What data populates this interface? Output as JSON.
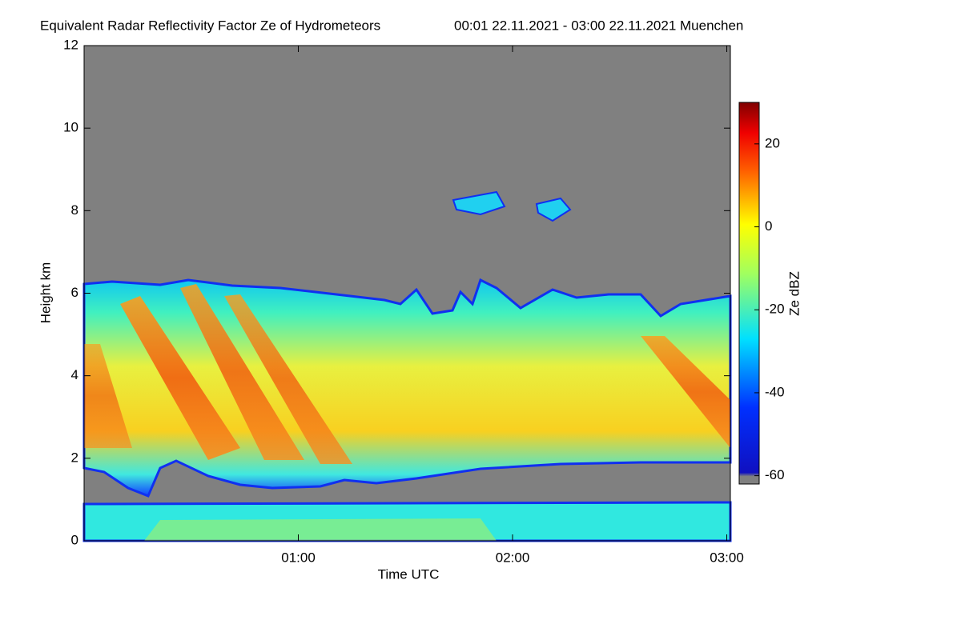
{
  "chart_data": {
    "type": "heatmap",
    "title": "Equivalent Radar Reflectivity Factor Ze of Hydrometeors",
    "subtitle": "00:01 22.11.2021 - 03:00 22.11.2021 Muenchen",
    "xlabel": "Time UTC",
    "ylabel": "Height km",
    "colorbar_label": "Ze dBZ",
    "xlim": [
      0,
      181
    ],
    "xticks": [
      {
        "value": 60,
        "label": "01:00"
      },
      {
        "value": 120,
        "label": "02:00"
      },
      {
        "value": 180,
        "label": "03:00"
      }
    ],
    "ylim": [
      0,
      12
    ],
    "yticks": [
      0,
      2,
      4,
      6,
      8,
      10,
      12
    ],
    "clim": [
      -62,
      30
    ],
    "cticks": [
      -60,
      -40,
      -20,
      0,
      20
    ],
    "colormap": "jet",
    "background": "#808080"
  }
}
